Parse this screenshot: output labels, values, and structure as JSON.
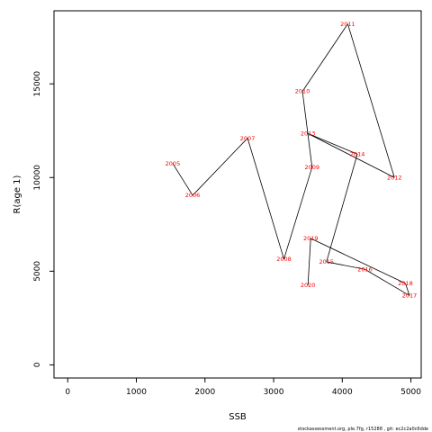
{
  "chart_data": {
    "type": "line",
    "title": "",
    "xlabel": "SSB",
    "ylabel": "R(age 1)",
    "xlim": [
      -200,
      5150
    ],
    "ylim": [
      -700,
      18900
    ],
    "x_ticks": [
      0,
      1000,
      2000,
      3000,
      4000,
      5000
    ],
    "y_ticks": [
      0,
      5000,
      10000,
      15000
    ],
    "grid": false,
    "legend": "none",
    "line_color": "#000000",
    "label_color": "#ff0000",
    "points": [
      {
        "year": "2005",
        "x": 1530,
        "y": 10750
      },
      {
        "year": "2006",
        "x": 1820,
        "y": 9050
      },
      {
        "year": "2007",
        "x": 2620,
        "y": 12100
      },
      {
        "year": "2008",
        "x": 3150,
        "y": 5650
      },
      {
        "year": "2009",
        "x": 3560,
        "y": 10550
      },
      {
        "year": "2010",
        "x": 3420,
        "y": 14600
      },
      {
        "year": "2011",
        "x": 4080,
        "y": 18200
      },
      {
        "year": "2012",
        "x": 4760,
        "y": 10000
      },
      {
        "year": "2013",
        "x": 3500,
        "y": 12350
      },
      {
        "year": "2014",
        "x": 4220,
        "y": 11250
      },
      {
        "year": "2015",
        "x": 3770,
        "y": 5500
      },
      {
        "year": "2016",
        "x": 4330,
        "y": 5100
      },
      {
        "year": "2017",
        "x": 4980,
        "y": 3700
      },
      {
        "year": "2018",
        "x": 4920,
        "y": 4350
      },
      {
        "year": "2019",
        "x": 3540,
        "y": 6750
      },
      {
        "year": "2020",
        "x": 3500,
        "y": 4250
      }
    ]
  },
  "footer": "stockassessment.org, ple.7fg, r15288 , git: ec2c2a0c6dde"
}
